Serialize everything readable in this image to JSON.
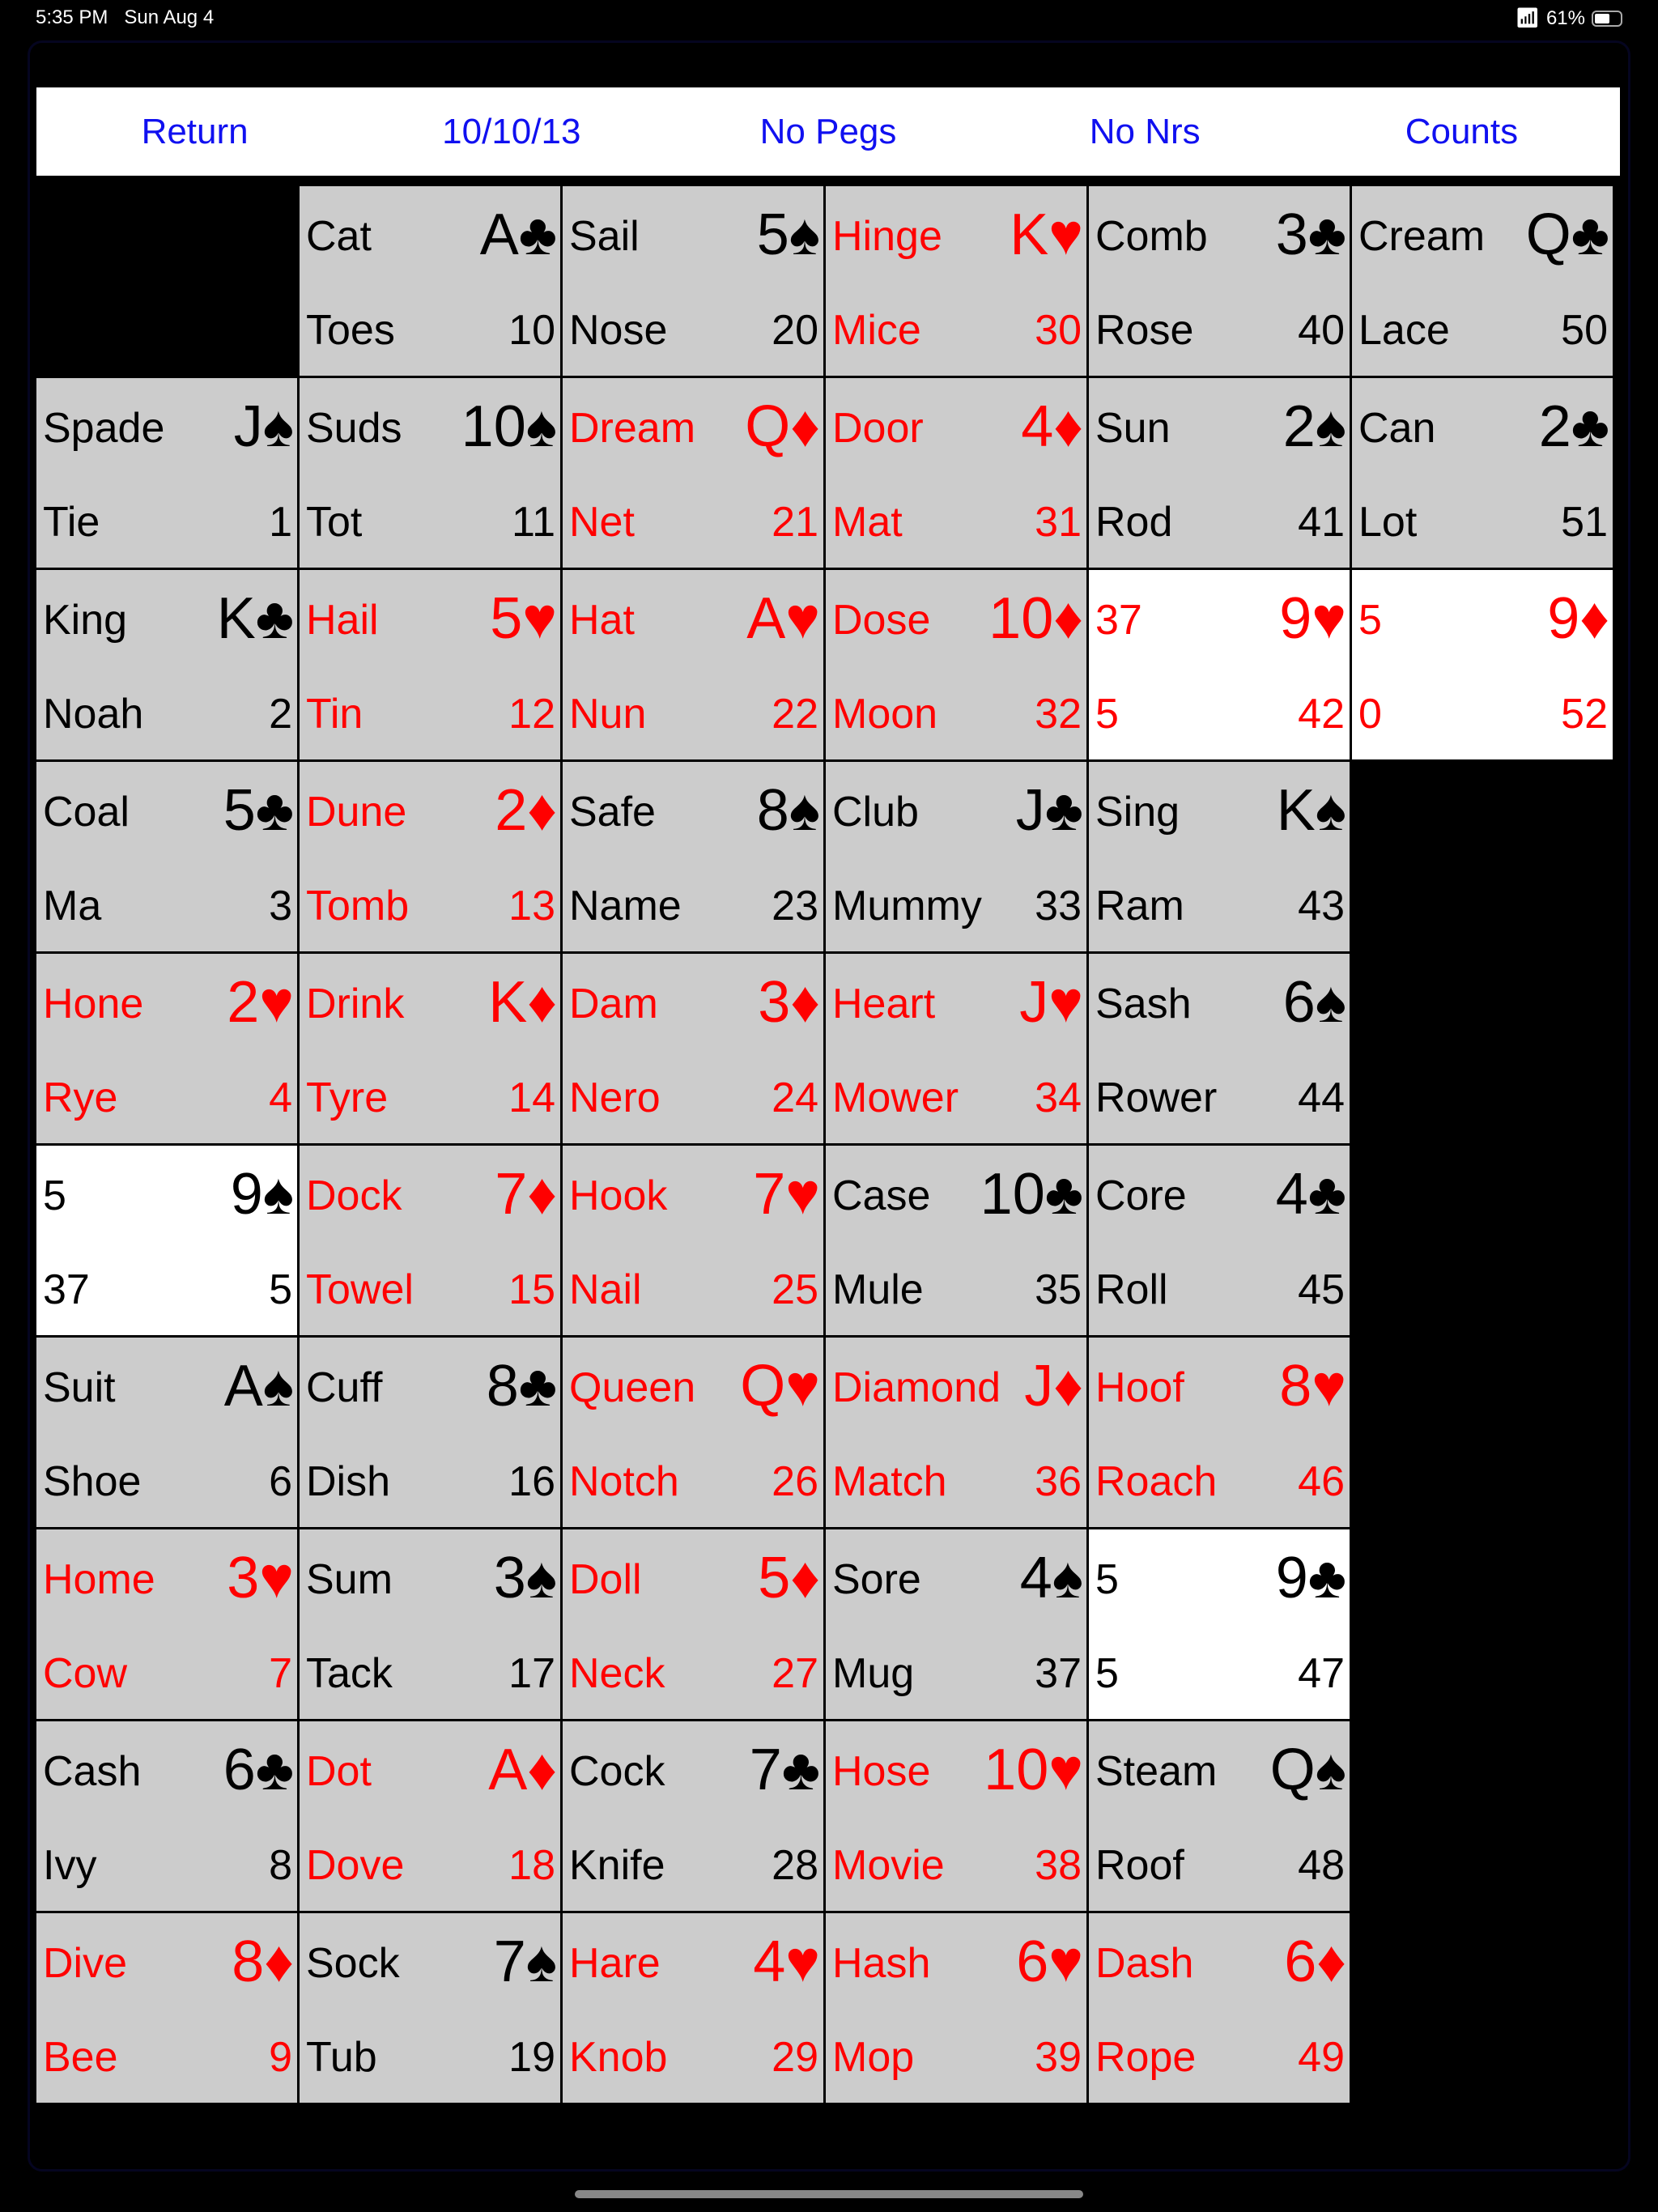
{
  "status": {
    "time": "5:35 PM",
    "date": "Sun Aug 4",
    "battery": "61%",
    "battery_level": 0.61
  },
  "header": {
    "buttons": [
      "Return",
      "10/10/13",
      "No Pegs",
      "No Nrs",
      "Counts"
    ]
  },
  "colors": {
    "red": "#ff0000",
    "black": "#000000",
    "cell": "#cccccc",
    "link": "#1010f0"
  },
  "grid": {
    "rows": [
      [
        null,
        {
          "w1": "Cat",
          "rank": "A♣",
          "w2": "Toes",
          "num": "10",
          "color": "black"
        },
        {
          "w1": "Sail",
          "rank": "5♠",
          "w2": "Nose",
          "num": "20",
          "color": "black"
        },
        {
          "w1": "Hinge",
          "rank": "K♥",
          "w2": "Mice",
          "num": "30",
          "color": "red"
        },
        {
          "w1": "Comb",
          "rank": "3♣",
          "w2": "Rose",
          "num": "40",
          "color": "black"
        },
        {
          "w1": "Cream",
          "rank": "Q♣",
          "w2": "Lace",
          "num": "50",
          "color": "black"
        }
      ],
      [
        {
          "w1": "Spade",
          "rank": "J♠",
          "w2": "Tie",
          "num": "1",
          "color": "black"
        },
        {
          "w1": "Suds",
          "rank": "10♠",
          "w2": "Tot",
          "num": "11",
          "color": "black"
        },
        {
          "w1": "Dream",
          "rank": "Q♦",
          "w2": "Net",
          "num": "21",
          "color": "red"
        },
        {
          "w1": "Door",
          "rank": "4♦",
          "w2": "Mat",
          "num": "31",
          "color": "red"
        },
        {
          "w1": "Sun",
          "rank": "2♠",
          "w2": "Rod",
          "num": "41",
          "color": "black"
        },
        {
          "w1": "Can",
          "rank": "2♣",
          "w2": "Lot",
          "num": "51",
          "color": "black"
        }
      ],
      [
        {
          "w1": "King",
          "rank": "K♣",
          "w2": "Noah",
          "num": "2",
          "color": "black"
        },
        {
          "w1": "Hail",
          "rank": "5♥",
          "w2": "Tin",
          "num": "12",
          "color": "red"
        },
        {
          "w1": "Hat",
          "rank": "A♥",
          "w2": "Nun",
          "num": "22",
          "color": "red"
        },
        {
          "w1": "Dose",
          "rank": "10♦",
          "w2": "Moon",
          "num": "32",
          "color": "red"
        },
        {
          "w1": "37",
          "rank": "9♥",
          "w2": "5",
          "num": "42",
          "color": "red",
          "white": true
        },
        {
          "w1": "5",
          "rank": "9♦",
          "w2": "0",
          "num": "52",
          "color": "red",
          "white": true
        }
      ],
      [
        {
          "w1": "Coal",
          "rank": "5♣",
          "w2": "Ma",
          "num": "3",
          "color": "black"
        },
        {
          "w1": "Dune",
          "rank": "2♦",
          "w2": "Tomb",
          "num": "13",
          "color": "red"
        },
        {
          "w1": "Safe",
          "rank": "8♠",
          "w2": "Name",
          "num": "23",
          "color": "black"
        },
        {
          "w1": "Club",
          "rank": "J♣",
          "w2": "Mummy",
          "num": "33",
          "color": "black"
        },
        {
          "w1": "Sing",
          "rank": "K♠",
          "w2": "Ram",
          "num": "43",
          "color": "black"
        },
        null
      ],
      [
        {
          "w1": "Hone",
          "rank": "2♥",
          "w2": "Rye",
          "num": "4",
          "color": "red"
        },
        {
          "w1": "Drink",
          "rank": "K♦",
          "w2": "Tyre",
          "num": "14",
          "color": "red"
        },
        {
          "w1": "Dam",
          "rank": "3♦",
          "w2": "Nero",
          "num": "24",
          "color": "red"
        },
        {
          "w1": "Heart",
          "rank": "J♥",
          "w2": "Mower",
          "num": "34",
          "color": "red"
        },
        {
          "w1": "Sash",
          "rank": "6♠",
          "w2": "Rower",
          "num": "44",
          "color": "black"
        },
        null
      ],
      [
        {
          "w1": "5",
          "rank": "9♠",
          "w2": "37",
          "num": "5",
          "color": "black",
          "white": true
        },
        {
          "w1": "Dock",
          "rank": "7♦",
          "w2": "Towel",
          "num": "15",
          "color": "red"
        },
        {
          "w1": "Hook",
          "rank": "7♥",
          "w2": "Nail",
          "num": "25",
          "color": "red"
        },
        {
          "w1": "Case",
          "rank": "10♣",
          "w2": "Mule",
          "num": "35",
          "color": "black"
        },
        {
          "w1": "Core",
          "rank": "4♣",
          "w2": "Roll",
          "num": "45",
          "color": "black"
        },
        null
      ],
      [
        {
          "w1": "Suit",
          "rank": "A♠",
          "w2": "Shoe",
          "num": "6",
          "color": "black"
        },
        {
          "w1": "Cuff",
          "rank": "8♣",
          "w2": "Dish",
          "num": "16",
          "color": "black"
        },
        {
          "w1": "Queen",
          "rank": "Q♥",
          "w2": "Notch",
          "num": "26",
          "color": "red"
        },
        {
          "w1": "Diamond",
          "rank": "J♦",
          "w2": "Match",
          "num": "36",
          "color": "red"
        },
        {
          "w1": "Hoof",
          "rank": "8♥",
          "w2": "Roach",
          "num": "46",
          "color": "red"
        },
        null
      ],
      [
        {
          "w1": "Home",
          "rank": "3♥",
          "w2": "Cow",
          "num": "7",
          "color": "red"
        },
        {
          "w1": "Sum",
          "rank": "3♠",
          "w2": "Tack",
          "num": "17",
          "color": "black"
        },
        {
          "w1": "Doll",
          "rank": "5♦",
          "w2": "Neck",
          "num": "27",
          "color": "red"
        },
        {
          "w1": "Sore",
          "rank": "4♠",
          "w2": "Mug",
          "num": "37",
          "color": "black"
        },
        {
          "w1": "5",
          "rank": "9♣",
          "w2": "5",
          "num": "47",
          "color": "black",
          "white": true
        },
        null
      ],
      [
        {
          "w1": "Cash",
          "rank": "6♣",
          "w2": "Ivy",
          "num": "8",
          "color": "black"
        },
        {
          "w1": "Dot",
          "rank": "A♦",
          "w2": "Dove",
          "num": "18",
          "color": "red"
        },
        {
          "w1": "Cock",
          "rank": "7♣",
          "w2": "Knife",
          "num": "28",
          "color": "black"
        },
        {
          "w1": "Hose",
          "rank": "10♥",
          "w2": "Movie",
          "num": "38",
          "color": "red"
        },
        {
          "w1": "Steam",
          "rank": "Q♠",
          "w2": "Roof",
          "num": "48",
          "color": "black"
        },
        null
      ],
      [
        {
          "w1": "Dive",
          "rank": "8♦",
          "w2": "Bee",
          "num": "9",
          "color": "red"
        },
        {
          "w1": "Sock",
          "rank": "7♠",
          "w2": "Tub",
          "num": "19",
          "color": "black"
        },
        {
          "w1": "Hare",
          "rank": "4♥",
          "w2": "Knob",
          "num": "29",
          "color": "red"
        },
        {
          "w1": "Hash",
          "rank": "6♥",
          "w2": "Mop",
          "num": "39",
          "color": "red"
        },
        {
          "w1": "Dash",
          "rank": "6♦",
          "w2": "Rope",
          "num": "49",
          "color": "red"
        },
        null
      ]
    ]
  }
}
